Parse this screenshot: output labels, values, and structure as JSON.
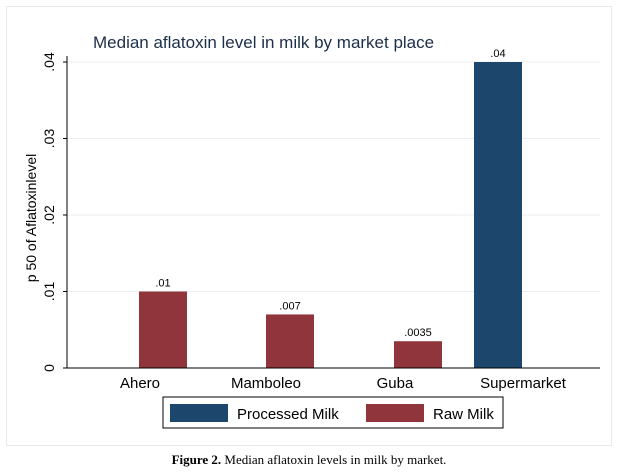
{
  "chart_data": {
    "type": "bar",
    "title": "Median aflatoxin level in milk by market place",
    "ylabel": "p 50 of Aflatoxinlevel",
    "xlabel": "",
    "ylim": [
      0,
      0.04
    ],
    "yticks": [
      {
        "v": 0,
        "label": "0"
      },
      {
        "v": 0.01,
        "label": ".01"
      },
      {
        "v": 0.02,
        "label": ".02"
      },
      {
        "v": 0.03,
        "label": ".03"
      },
      {
        "v": 0.04,
        "label": ".04"
      }
    ],
    "grid": true,
    "categories": [
      "Ahero",
      "Mamboleo",
      "Guba",
      "Supermarket"
    ],
    "series": [
      {
        "name": "Processed Milk",
        "color": "#1c466b",
        "values": [
          null,
          null,
          null,
          0.04
        ],
        "labels": [
          "",
          "",
          "",
          ".04"
        ]
      },
      {
        "name": "Raw Milk",
        "color": "#90353b",
        "values": [
          0.01,
          0.007,
          0.0035,
          null
        ],
        "labels": [
          ".01",
          ".007",
          ".0035",
          ""
        ]
      }
    ],
    "legend": "bottom"
  },
  "caption": {
    "label": "Figure 2.",
    "text": " Median aflatoxin levels in milk by market."
  }
}
